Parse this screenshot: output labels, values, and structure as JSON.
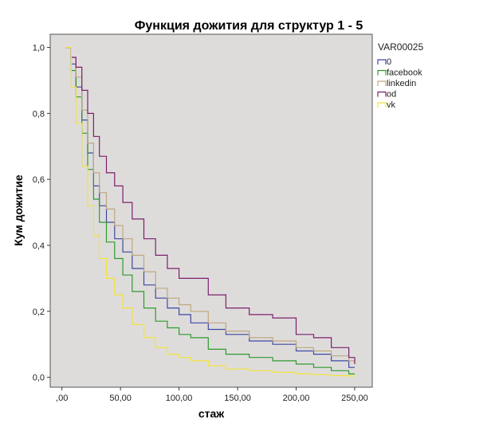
{
  "chart_data": {
    "type": "line",
    "title": "Функция дожития для структур 1 - 5",
    "xlabel": "стаж",
    "ylabel": "Кум дожитие",
    "xlim": [
      -10,
      265
    ],
    "ylim": [
      -0.03,
      1.04
    ],
    "x_ticks": [
      0,
      50,
      100,
      150,
      200,
      250
    ],
    "x_tick_labels": [
      ",00",
      "50,00",
      "100,00",
      "150,00",
      "200,00",
      "250,00"
    ],
    "y_ticks": [
      0,
      0.2,
      0.4,
      0.6,
      0.8,
      1.0
    ],
    "y_tick_labels": [
      "0,0",
      "0,2",
      "0,4",
      "0,6",
      "0,8",
      "1,0"
    ],
    "grid": false,
    "background": "#dedcdb",
    "legend": {
      "title": "VAR00025",
      "position": "right"
    },
    "series": [
      {
        "name": "0",
        "color": "#3f48a3",
        "x": [
          3,
          8,
          12,
          17,
          22,
          27,
          32,
          38,
          45,
          52,
          60,
          70,
          80,
          90,
          100,
          110,
          125,
          140,
          160,
          180,
          200,
          215,
          230,
          245,
          250
        ],
        "y": [
          1.0,
          0.95,
          0.88,
          0.78,
          0.68,
          0.58,
          0.52,
          0.47,
          0.42,
          0.38,
          0.33,
          0.28,
          0.24,
          0.21,
          0.19,
          0.165,
          0.145,
          0.13,
          0.11,
          0.1,
          0.08,
          0.07,
          0.05,
          0.03,
          0.03
        ]
      },
      {
        "name": "facebook",
        "color": "#2e9a2e",
        "x": [
          3,
          8,
          12,
          17,
          22,
          27,
          32,
          38,
          45,
          52,
          60,
          70,
          80,
          90,
          100,
          110,
          125,
          140,
          160,
          180,
          200,
          215,
          230,
          245,
          250
        ],
        "y": [
          1.0,
          0.93,
          0.85,
          0.74,
          0.63,
          0.54,
          0.47,
          0.41,
          0.36,
          0.31,
          0.26,
          0.21,
          0.17,
          0.15,
          0.13,
          0.12,
          0.085,
          0.07,
          0.06,
          0.05,
          0.04,
          0.03,
          0.02,
          0.01,
          0.01
        ]
      },
      {
        "name": "linkedin",
        "color": "#bfa77e",
        "x": [
          3,
          8,
          12,
          17,
          22,
          27,
          32,
          38,
          45,
          52,
          60,
          70,
          80,
          90,
          100,
          110,
          125,
          140,
          160,
          180,
          200,
          215,
          230,
          245,
          250
        ],
        "y": [
          1.0,
          0.97,
          0.91,
          0.81,
          0.71,
          0.62,
          0.56,
          0.51,
          0.46,
          0.42,
          0.37,
          0.32,
          0.27,
          0.24,
          0.22,
          0.2,
          0.165,
          0.14,
          0.12,
          0.11,
          0.09,
          0.08,
          0.065,
          0.05,
          0.04
        ]
      },
      {
        "name": "od",
        "color": "#7d1f6e",
        "x": [
          3,
          8,
          12,
          17,
          22,
          27,
          32,
          38,
          45,
          52,
          60,
          70,
          80,
          90,
          100,
          110,
          125,
          140,
          160,
          180,
          200,
          215,
          230,
          245,
          250
        ],
        "y": [
          1.0,
          0.97,
          0.94,
          0.87,
          0.8,
          0.73,
          0.67,
          0.62,
          0.58,
          0.53,
          0.48,
          0.42,
          0.37,
          0.33,
          0.3,
          0.3,
          0.25,
          0.21,
          0.19,
          0.18,
          0.13,
          0.12,
          0.09,
          0.06,
          0.04
        ]
      },
      {
        "name": "vk",
        "color": "#f2e43a",
        "x": [
          3,
          8,
          12,
          17,
          22,
          27,
          32,
          38,
          45,
          52,
          60,
          70,
          80,
          90,
          100,
          110,
          125,
          140,
          160,
          180,
          200,
          215,
          230,
          245,
          250
        ],
        "y": [
          1.0,
          0.88,
          0.77,
          0.64,
          0.52,
          0.43,
          0.36,
          0.3,
          0.25,
          0.21,
          0.16,
          0.12,
          0.09,
          0.07,
          0.06,
          0.05,
          0.035,
          0.025,
          0.02,
          0.015,
          0.01,
          0.008,
          0.005,
          0.004,
          0.003
        ]
      }
    ]
  }
}
